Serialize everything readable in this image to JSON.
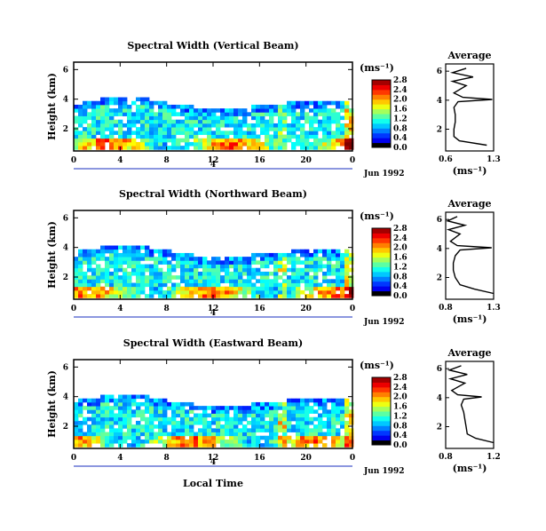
{
  "chart_data": [
    {
      "type": "heatmap",
      "title": "Spectral Width (Vertical Beam)",
      "ylabel": "Height (km)",
      "ylim": [
        0.5,
        6.5
      ],
      "yticks": [
        "2",
        "4",
        "6"
      ],
      "xticks": [
        "0",
        "4",
        "8",
        "12",
        "16",
        "20",
        "0"
      ],
      "xlim": [
        0,
        24
      ],
      "day_marker": "4",
      "date_label": "Jun 1992",
      "colorbar": {
        "unit": "(ms⁻¹)",
        "min": 0.0,
        "max": 2.8,
        "ticks": [
          "0.0",
          "0.4",
          "0.8",
          "1.2",
          "1.6",
          "2.0",
          "2.4",
          "2.8"
        ]
      },
      "average_profile": {
        "title": "Average",
        "xlabel": "(ms⁻¹)",
        "xticks": [
          "0.6",
          "1.3"
        ],
        "xlim": [
          0.6,
          1.3
        ],
        "yticks": [
          "2",
          "4",
          "6"
        ],
        "height_km": [
          0.9,
          1.2,
          1.5,
          2.0,
          2.5,
          3.0,
          3.5,
          3.9,
          4.05,
          4.2,
          4.5,
          5.0,
          5.3,
          5.6,
          5.9,
          6.2
        ],
        "width": [
          1.2,
          0.8,
          0.72,
          0.72,
          0.74,
          0.74,
          0.72,
          0.78,
          1.28,
          0.85,
          0.72,
          0.9,
          0.7,
          1.0,
          0.7,
          0.9
        ]
      }
    },
    {
      "type": "heatmap",
      "title": "Spectral Width (Northward Beam)",
      "ylabel": "Height (km)",
      "ylim": [
        0.5,
        6.5
      ],
      "yticks": [
        "2",
        "4",
        "6"
      ],
      "xticks": [
        "0",
        "4",
        "8",
        "12",
        "16",
        "20",
        "0"
      ],
      "xlim": [
        0,
        24
      ],
      "day_marker": "4",
      "date_label": "Jun 1992",
      "colorbar": {
        "unit": "(ms⁻¹)",
        "min": 0.0,
        "max": 2.8,
        "ticks": [
          "0.0",
          "0.4",
          "0.8",
          "1.2",
          "1.6",
          "2.0",
          "2.4",
          "2.8"
        ]
      },
      "average_profile": {
        "title": "Average",
        "xlabel": "(ms⁻¹)",
        "xticks": [
          "0.8",
          "1.3"
        ],
        "xlim": [
          0.8,
          1.3
        ],
        "yticks": [
          "2",
          "4",
          "6"
        ],
        "height_km": [
          0.9,
          1.2,
          1.5,
          2.0,
          2.5,
          3.0,
          3.5,
          3.9,
          4.05,
          4.2,
          4.5,
          5.0,
          5.3,
          5.6,
          5.9,
          6.2
        ],
        "width": [
          1.3,
          1.1,
          0.95,
          0.9,
          0.88,
          0.88,
          0.9,
          0.95,
          1.28,
          0.92,
          0.85,
          0.95,
          0.83,
          1.0,
          0.82,
          0.92
        ]
      }
    },
    {
      "type": "heatmap",
      "title": "Spectral Width (Eastward Beam)",
      "ylabel": "Height (km)",
      "ylim": [
        0.5,
        6.5
      ],
      "yticks": [
        "2",
        "4",
        "6"
      ],
      "xticks": [
        "0",
        "4",
        "8",
        "12",
        "16",
        "20",
        "0"
      ],
      "xlim": [
        0,
        24
      ],
      "day_marker": "4",
      "date_label": "Jun 1992",
      "colorbar": {
        "unit": "(ms⁻¹)",
        "min": 0.0,
        "max": 2.8,
        "ticks": [
          "0.0",
          "0.4",
          "0.8",
          "1.2",
          "1.6",
          "2.0",
          "2.4",
          "2.8"
        ]
      },
      "average_profile": {
        "title": "Average",
        "xlabel": "(ms⁻¹)",
        "xticks": [
          "0.8",
          "1.2"
        ],
        "xlim": [
          0.8,
          1.2
        ],
        "yticks": [
          "2",
          "4",
          "6"
        ],
        "height_km": [
          0.9,
          1.2,
          1.5,
          2.0,
          2.5,
          3.0,
          3.5,
          3.9,
          4.05,
          4.2,
          4.5,
          5.0,
          5.3,
          5.6,
          5.9,
          6.2
        ],
        "width": [
          1.2,
          1.05,
          0.98,
          0.97,
          0.96,
          0.95,
          0.93,
          0.95,
          1.1,
          0.9,
          0.85,
          0.96,
          0.84,
          0.98,
          0.83,
          0.93
        ]
      }
    }
  ],
  "footer": {
    "xlabel": "Local Time"
  },
  "colors": {
    "frame": "#000000",
    "axis_blue": "#1a2fbf"
  }
}
